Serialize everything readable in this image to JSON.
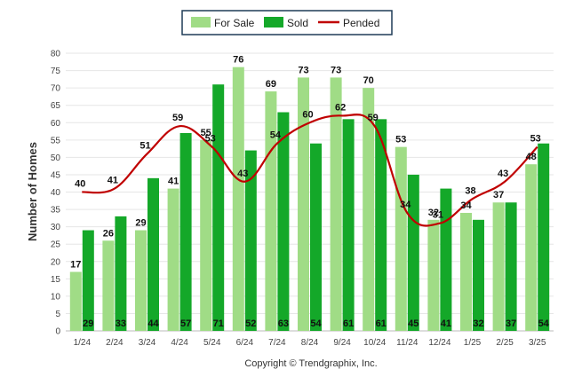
{
  "chart_data": {
    "type": "bar",
    "ylabel": "Number of Homes",
    "ylim": [
      0,
      80
    ],
    "yticks": [
      0,
      5,
      10,
      15,
      20,
      25,
      30,
      35,
      40,
      45,
      50,
      55,
      60,
      65,
      70,
      75,
      80
    ],
    "categories": [
      "1/24",
      "2/24",
      "3/24",
      "4/24",
      "5/24",
      "6/24",
      "7/24",
      "8/24",
      "9/24",
      "10/24",
      "11/24",
      "12/24",
      "1/25",
      "2/25",
      "3/25"
    ],
    "series": [
      {
        "name": "For Sale",
        "type": "bar",
        "color": "#a0dc86",
        "values": [
          17,
          26,
          29,
          41,
          55,
          76,
          69,
          73,
          73,
          70,
          53,
          32,
          34,
          37,
          48
        ]
      },
      {
        "name": "Sold",
        "type": "bar",
        "color": "#14a829",
        "values": [
          29,
          33,
          44,
          57,
          71,
          52,
          63,
          54,
          61,
          61,
          45,
          41,
          32,
          37,
          54
        ]
      },
      {
        "name": "Pended",
        "type": "line",
        "color": "#c00000",
        "values": [
          40,
          41,
          51,
          59,
          53,
          43,
          54,
          60,
          62,
          59,
          34,
          31,
          38,
          43,
          53
        ]
      }
    ],
    "legend": "top-center",
    "grid": true
  },
  "footer": {
    "copyright": "Copyright © Trendgraphix, Inc."
  }
}
